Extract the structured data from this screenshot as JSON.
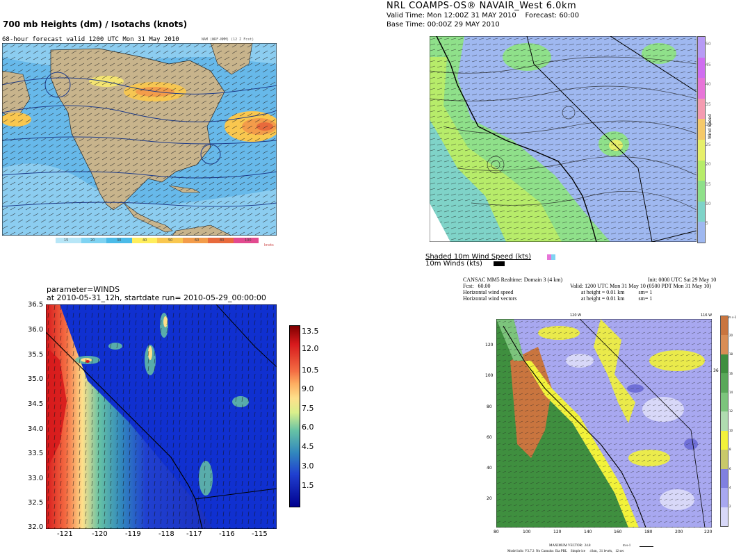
{
  "panel_tl": {
    "title": "700 mb Heights (dm) / Isotachs (knots)",
    "subtitle": "68-hour forecast valid 1200 UTC Mon 31 May 2010",
    "corner_note": "NAM (WRF-NMM) (12 Z Fcst)",
    "legend_unit": "knots",
    "legend_ticks": [
      "15",
      "20",
      "30",
      "40",
      "50",
      "60",
      "80",
      "100"
    ],
    "legend_colors": [
      "#b7e6f7",
      "#7fd3f2",
      "#4bbbe8",
      "#ffee5c",
      "#f9c74f",
      "#f39c4a",
      "#e86a3c",
      "#e24a8f"
    ]
  },
  "panel_tr": {
    "title": "NRL COAMPS-OS® NAVAIR_West 6.0km",
    "valid_line": "Valid Time: Mon 12:00Z 31 MAY 2010    Forecast: 60:00",
    "base_line": "Base Time: 00:00Z 29 MAY 2010",
    "colorbar_label": "Wind Speed",
    "colorbar_ticks": [
      "5",
      "10",
      "15",
      "20",
      "25",
      "30",
      "35",
      "40",
      "45",
      "50"
    ],
    "colorbar_colors": [
      "#9fb8f0",
      "#7fd3c8",
      "#8fe08a",
      "#b7ec6a",
      "#e6ef6a",
      "#f5c96a",
      "#f49bb0",
      "#e775d8",
      "#cf6ef0",
      "#b79bf5"
    ],
    "legend_shaded": "Shaded 10m Wind Speed (kts)",
    "legend_winds": "10m Winds (kts)"
  },
  "panel_bl": {
    "title_line1": "parameter=WINDS",
    "title_line2": "at 2010-05-31_12h, startdate run= 2010-05-29_00:00:00",
    "y_ticks": [
      "36.5",
      "36.0",
      "35.5",
      "35.0",
      "34.5",
      "34.0",
      "33.5",
      "33.0",
      "32.5",
      "32.0"
    ],
    "x_ticks": [
      "-121",
      "-120",
      "-119",
      "-118",
      "-117",
      "-116",
      "-115"
    ],
    "colorbar_ticks": [
      "13.5",
      "12.0",
      "10.5",
      "9.0",
      "7.5",
      "6.0",
      "4.5",
      "3.0",
      "1.5"
    ],
    "colorbar_colors": [
      "#7f0000",
      "#d7191c",
      "#f46d43",
      "#fdae61",
      "#fee08b",
      "#d9ef8b",
      "#66c2a5",
      "#3288bd",
      "#2040d0",
      "#00008f"
    ]
  },
  "panel_br": {
    "header_left1": "CANSAC MM5 Realtime: Domain 3  (4 km)",
    "header_left2": "Fcst:   60.00",
    "header_left3": "Horizontal wind speed",
    "header_left4": "Horizontal wind vectors",
    "header_right1": "Init: 0000 UTC Sat 29 May 10",
    "header_right2": "Valid: 1200 UTC Mon 31 May 10 (0500 PDT Mon 31 May 10)",
    "header_right3": "at height = 0.01 km          sm= 1",
    "header_right4": "at height = 0.01 km          sm= 1",
    "top_tick_left": "120 W",
    "top_tick_right": "116 W",
    "y_ticks": [
      "120",
      "100",
      "80",
      "60",
      "40",
      "20"
    ],
    "x_ticks": [
      "80",
      "100",
      "120",
      "140",
      "160",
      "180",
      "200",
      "220"
    ],
    "colorbar_unit": "m s-1",
    "colorbar_ticks": [
      "20",
      "18",
      "16",
      "14",
      "12",
      "10",
      "8",
      "6",
      "4",
      "2"
    ],
    "colorbar_colors": [
      "#c9753f",
      "#d98d55",
      "#3f8f3f",
      "#5aa85a",
      "#7cc47c",
      "#b0dcb0",
      "#f2f23a",
      "#c9c96a",
      "#8080e0",
      "#a8a8f0",
      "#d8d8f8"
    ],
    "side_label": "36 N",
    "footer_max": "MAXIMUM VECTOR:  24.8",
    "footer_unit": "m s-1",
    "footer_model": "Model info: V3.7.3  No Cumulus  Eta PBL    Simple ice     4 km,  31 levels,   12 sec"
  }
}
